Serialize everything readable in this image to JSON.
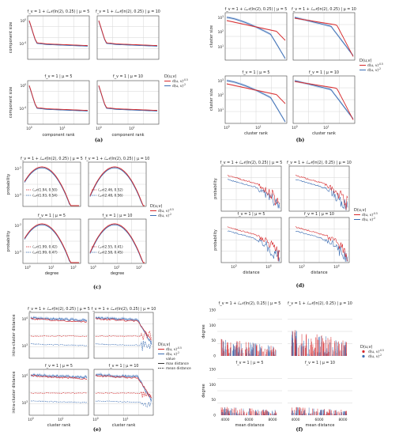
{
  "colors": {
    "red": "#d6282b",
    "blue": "#3b6db3",
    "red_light": "#f0a3a3",
    "blue_light": "#9fb8de",
    "gray": "#888888"
  },
  "legend": {
    "title": "D(u,v)",
    "red": "d(u, v)^{-0.5}",
    "blue": "d(u, v)^{-2}",
    "value": "value",
    "max": "max distance",
    "mean": "mean distance"
  },
  "titles": {
    "ln_mu5": "f_v = 1 + ℒ𝒩(ln(2), 0.25) | μ = 5",
    "ln_mu10": "f_v = 1 + ℒ𝒩(ln(2), 0.25) | μ = 10",
    "one_mu5": "f_v = 1 | μ = 5",
    "one_mu10": "f_v = 1 | μ = 10"
  },
  "panels": {
    "a": {
      "label": "(a)",
      "ylabel": "component size",
      "xlabel": "component rank"
    },
    "b": {
      "label": "(b)",
      "ylabel": "cluster size",
      "xlabel": "cluster rank"
    },
    "c": {
      "label": "(c)",
      "ylabel": "probability",
      "xlabel": "degree",
      "fits": {
        "tl": [
          "ℒ𝒩(1.94, 0.50)",
          "ℒ𝒩(1.93, 0.54)"
        ],
        "tr": [
          "ℒ𝒩(2.46, 0.52)",
          "ℒ𝒩(2.48, 0.56)"
        ],
        "bl": [
          "ℒ𝒩(1.99, 0.42)",
          "ℒ𝒩(1.99, 0.47)"
        ],
        "br": [
          "ℒ𝒩(2.55, 0.41)",
          "ℒ𝒩(2.58, 0.45)"
        ]
      }
    },
    "d": {
      "label": "(d)",
      "ylabel": "probability",
      "xlabel": "distance"
    },
    "e": {
      "label": "(e)",
      "ylabel": "intra-cluster distance",
      "xlabel": "cluster rank"
    },
    "f": {
      "label": "(f)",
      "ylabel": "degree",
      "xlabel": "mean distance"
    }
  },
  "chart_data": [
    {
      "type": "line",
      "id": "a",
      "xlabel": "component rank",
      "ylabel": "component size",
      "xscale": "log",
      "yscale": "log",
      "yticks": [
        "10^0",
        "10^{-4}"
      ],
      "xticks": [
        "10^0",
        "10^1"
      ],
      "series": [
        {
          "name": "d(u, v)^{-0.5}"
        },
        {
          "name": "d(u, v)^{-2}"
        }
      ]
    },
    {
      "type": "line",
      "id": "b",
      "xlabel": "cluster rank",
      "ylabel": "cluster size",
      "xscale": "log",
      "yscale": "log",
      "yticks": [
        "10^3",
        "10^2",
        "10^1"
      ],
      "xticks": [
        "10^0",
        "10^1"
      ],
      "series": [
        {
          "name": "d(u, v)^{-0.5}"
        },
        {
          "name": "d(u, v)^{-2}"
        }
      ]
    },
    {
      "type": "line",
      "id": "c",
      "xlabel": "degree",
      "ylabel": "probability",
      "xscale": "log",
      "yscale": "log",
      "yticks": [
        "10^{-2}",
        "10^{-5}"
      ],
      "xticks": [
        "10^0",
        "10^1",
        "10^2"
      ],
      "series": [
        {
          "name": "d(u, v)^{-0.5}"
        },
        {
          "name": "d(u, v)^{-2}"
        }
      ]
    },
    {
      "type": "line",
      "id": "d",
      "xlabel": "distance",
      "ylabel": "probability",
      "xscale": "log",
      "yscale": "log",
      "xticks": [
        "10^3",
        "10^4"
      ],
      "series": [
        {
          "name": "d(u, v)^{-0.5}"
        },
        {
          "name": "d(u, v)^{-2}"
        }
      ]
    },
    {
      "type": "line",
      "id": "e",
      "xlabel": "cluster rank",
      "ylabel": "intra-cluster distance",
      "xscale": "log",
      "yscale": "log",
      "yticks": [
        "10^4",
        "10^3"
      ],
      "xticks": [
        "10^0",
        "10^1"
      ],
      "series": [
        {
          "name": "d(u, v)^{-0.5}"
        },
        {
          "name": "d(u, v)^{-2}"
        }
      ]
    },
    {
      "type": "scatter",
      "id": "f",
      "xlabel": "mean distance",
      "ylabel": "degree",
      "yticks": [
        0,
        50,
        100,
        150
      ],
      "xticks": [
        4000,
        6000,
        8000
      ],
      "series": [
        {
          "name": "d(u, v)^{-0.5}"
        },
        {
          "name": "d(u, v)^{-2}"
        }
      ]
    }
  ]
}
